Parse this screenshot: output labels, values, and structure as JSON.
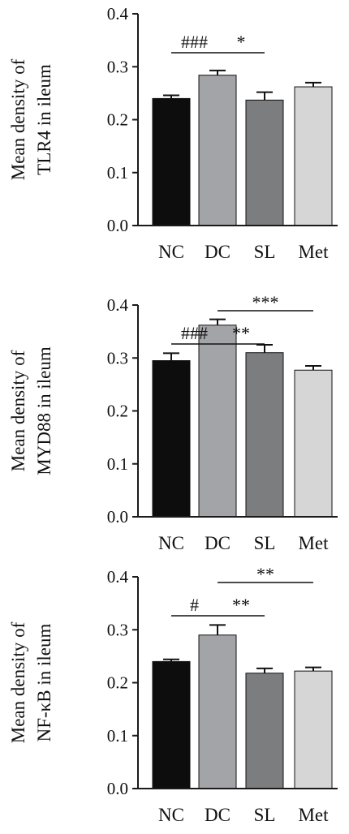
{
  "colors": {
    "NC": "#0d0d0d",
    "DC": "#a3a4a8",
    "SL": "#7c7d7e",
    "Met": "#d6d6d6",
    "axis": "#1a1a1a"
  },
  "chart_data": [
    {
      "type": "bar",
      "ylabel_line1": "Mean density of",
      "ylabel_line2": "TLR4 in ileum",
      "categories": [
        "NC",
        "DC",
        "SL",
        "Met"
      ],
      "values": [
        0.24,
        0.284,
        0.237,
        0.262
      ],
      "errors": [
        0.006,
        0.009,
        0.015,
        0.008
      ],
      "ylim": [
        0,
        0.4
      ],
      "yticks": [
        "0.0",
        "0.1",
        "0.2",
        "0.3",
        "0.4"
      ],
      "significance": [
        {
          "from": "NC",
          "to": "DC",
          "label": "###"
        },
        {
          "from": "DC",
          "to": "SL",
          "label": "*"
        }
      ]
    },
    {
      "type": "bar",
      "ylabel_line1": "Mean density of",
      "ylabel_line2": "MYD88 in ileum",
      "categories": [
        "NC",
        "DC",
        "SL",
        "Met"
      ],
      "values": [
        0.295,
        0.362,
        0.31,
        0.277
      ],
      "errors": [
        0.014,
        0.011,
        0.015,
        0.008
      ],
      "ylim": [
        0,
        0.4
      ],
      "yticks": [
        "0.0",
        "0.1",
        "0.2",
        "0.3",
        "0.4"
      ],
      "significance": [
        {
          "from": "NC",
          "to": "DC",
          "label": "###"
        },
        {
          "from": "DC",
          "to": "SL",
          "label": "**"
        },
        {
          "from": "DC",
          "to": "Met",
          "label": "***"
        }
      ]
    },
    {
      "type": "bar",
      "ylabel_line1": "Mean density of",
      "ylabel_line2": "NF-κB in ileum",
      "categories": [
        "NC",
        "DC",
        "SL",
        "Met"
      ],
      "values": [
        0.24,
        0.29,
        0.218,
        0.222
      ],
      "errors": [
        0.004,
        0.019,
        0.009,
        0.007
      ],
      "ylim": [
        0,
        0.4
      ],
      "yticks": [
        "0.0",
        "0.1",
        "0.2",
        "0.3",
        "0.4"
      ],
      "significance": [
        {
          "from": "NC",
          "to": "DC",
          "label": "#"
        },
        {
          "from": "DC",
          "to": "SL",
          "label": "**"
        },
        {
          "from": "DC",
          "to": "Met",
          "label": "**"
        }
      ]
    }
  ]
}
